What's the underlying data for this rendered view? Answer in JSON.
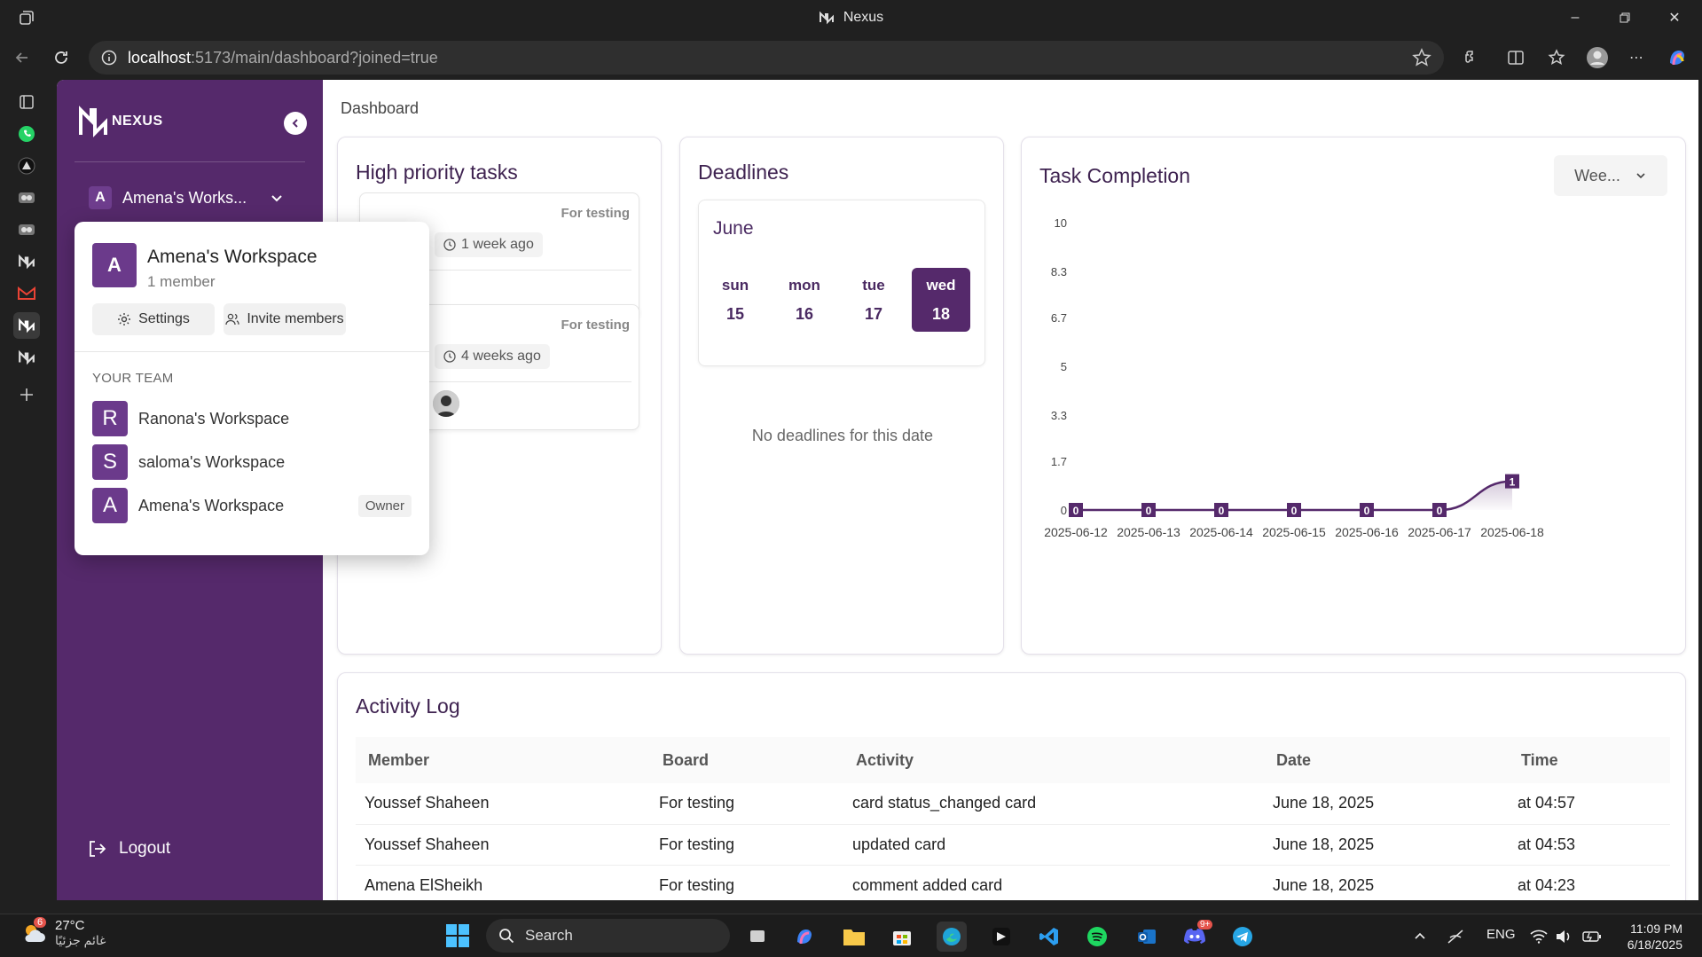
{
  "browser": {
    "window_title": "Nexus",
    "url_host": "localhost",
    "url_path": ":5173/main/dashboard?joined=true"
  },
  "sidebar": {
    "logo_text": "NEXUS",
    "workspace_name": "Amena's Works...",
    "workspace_initial": "A",
    "logout_label": "Logout"
  },
  "popover": {
    "workspace_name": "Amena's Workspace",
    "workspace_initial": "A",
    "members": "1 member",
    "settings_label": "Settings",
    "invite_label": "Invite members",
    "team_label": "YOUR TEAM",
    "teams": [
      {
        "initial": "R",
        "name": "Ranona's Workspace"
      },
      {
        "initial": "S",
        "name": "saloma's Workspace"
      },
      {
        "initial": "A",
        "name": "Amena's Workspace",
        "badge": "Owner"
      }
    ]
  },
  "page": {
    "title": "Dashboard"
  },
  "high_priority": {
    "title": "High priority tasks",
    "tasks": [
      {
        "board": "For testing",
        "ago": "1 week ago"
      },
      {
        "board": "For testing",
        "ago": "4 weeks ago"
      }
    ]
  },
  "deadlines": {
    "title": "Deadlines",
    "month": "June",
    "days": [
      {
        "name": "sun",
        "date": "15"
      },
      {
        "name": "mon",
        "date": "16"
      },
      {
        "name": "tue",
        "date": "17"
      },
      {
        "name": "wed",
        "date": "18"
      }
    ],
    "selected_day": "wed",
    "empty_text": "No deadlines for this date"
  },
  "task_completion": {
    "title": "Task Completion",
    "range_label": "Wee..."
  },
  "chart_data": {
    "type": "area",
    "categories": [
      "2025-06-12",
      "2025-06-13",
      "2025-06-14",
      "2025-06-15",
      "2025-06-16",
      "2025-06-17",
      "2025-06-18"
    ],
    "values": [
      0,
      0,
      0,
      0,
      0,
      0,
      1
    ],
    "data_labels": [
      "0",
      "0",
      "0",
      "0",
      "0",
      "0",
      "1"
    ],
    "yticks": [
      "0",
      "1.7",
      "3.3",
      "5",
      "6.7",
      "8.3",
      "10"
    ],
    "ylim": [
      0,
      10
    ],
    "color": "#55296b"
  },
  "activity_log": {
    "title": "Activity Log",
    "columns": [
      "Member",
      "Board",
      "Activity",
      "Date",
      "Time"
    ],
    "rows": [
      [
        "Youssef Shaheen",
        "For testing",
        "card status_changed card",
        "June 18, 2025",
        "at 04:57"
      ],
      [
        "Youssef Shaheen",
        "For testing",
        "updated card",
        "June 18, 2025",
        "at 04:53"
      ],
      [
        "Amena ElSheikh",
        "For testing",
        "comment added card",
        "June 18, 2025",
        "at 04:23"
      ]
    ]
  },
  "taskbar": {
    "temperature": "27°C",
    "condition": "غائم جزئيًا",
    "weather_badge": "6",
    "search_label": "Search",
    "language": "ENG",
    "time": "11:09 PM",
    "date": "6/18/2025",
    "discord_badge": "9+"
  },
  "colors": {
    "primary": "#55296b",
    "sidebar_bg": "#55296b"
  }
}
